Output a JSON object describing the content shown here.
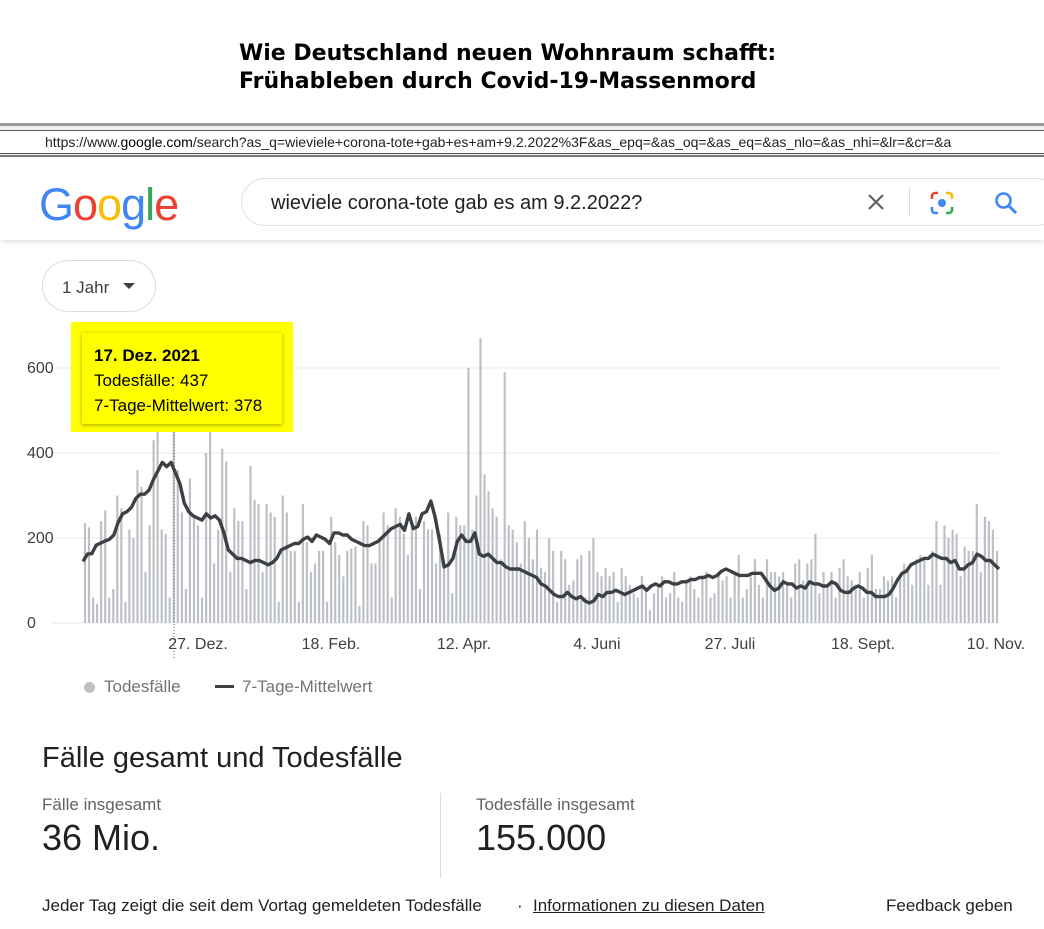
{
  "headline": {
    "line1": "Wie Deutschland neuen Wohnraum schafft:",
    "line2": "Frühableben durch Covid-19-Massenmord"
  },
  "browser": {
    "url_prefix": "https://www.",
    "url_domain": "google.com",
    "url_rest": "/search?as_q=wieviele+corona-tote+gab+es+am+9.2.2022%3F&as_epq=&as_oq=&as_eq=&as_nlo=&as_nhi=&lr=&cr=&a"
  },
  "search": {
    "logo_letters": [
      "G",
      "o",
      "o",
      "g",
      "l",
      "e"
    ],
    "logo_colors": [
      "#4285F4",
      "#EA4335",
      "#FBBC05",
      "#4285F4",
      "#34A853",
      "#EA4335"
    ],
    "query": "wieviele corona-tote gab es am 9.2.2022?",
    "icons": [
      "clear-icon",
      "camera-lens-icon",
      "search-icon"
    ]
  },
  "range_selector": {
    "label": "1 Jahr"
  },
  "tooltip": {
    "date": "17. Dez. 2021",
    "deaths": "Todesfälle: 437",
    "avg": "7-Tage-Mittelwert: 378",
    "highlight_color": "#ffff00"
  },
  "chart_data": {
    "type": "bar+line",
    "y_ticks": [
      "0",
      "200",
      "400",
      "600"
    ],
    "ylim": [
      0,
      680
    ],
    "x_ticks": [
      "27. Dez.",
      "18. Feb.",
      "12. Apr.",
      "4. Juni",
      "27. Juli",
      "18. Sept.",
      "10. Nov."
    ],
    "bar_color": "#bdc1c6",
    "line_color": "#3c4043",
    "series": [
      {
        "name": "Todesfälle",
        "kind": "bar",
        "values": [
          235,
          225,
          60,
          45,
          240,
          265,
          60,
          80,
          300,
          270,
          50,
          220,
          200,
          360,
          320,
          120,
          230,
          430,
          600,
          220,
          210,
          60,
          560,
          360,
          260,
          80,
          340,
          250,
          230,
          60,
          400,
          470,
          140,
          220,
          410,
          380,
          120,
          270,
          240,
          240,
          80,
          370,
          290,
          280,
          120,
          280,
          260,
          250,
          50,
          300,
          260,
          170,
          170,
          50,
          280,
          190,
          120,
          140,
          170,
          170,
          50,
          250,
          190,
          160,
          110,
          170,
          175,
          180,
          40,
          240,
          230,
          140,
          140,
          200,
          260,
          230,
          60,
          270,
          250,
          210,
          160,
          230,
          250,
          80,
          240,
          220,
          220,
          140,
          210,
          150,
          260,
          70,
          250,
          230,
          230,
          600,
          220,
          300,
          670,
          350,
          310,
          270,
          250,
          150,
          590,
          230,
          220,
          190,
          140,
          240,
          200,
          150,
          220,
          130,
          120,
          200,
          170,
          50,
          170,
          150,
          90,
          100,
          150,
          160,
          60,
          170,
          200,
          120,
          110,
          130,
          110,
          120,
          50,
          130,
          110,
          90,
          70,
          60,
          110,
          80,
          30,
          70,
          90,
          110,
          60,
          70,
          120,
          60,
          50,
          100,
          110,
          80,
          60,
          110,
          120,
          60,
          70,
          120,
          100,
          110,
          60,
          120,
          160,
          60,
          80,
          110,
          150,
          90,
          60,
          150,
          120,
          120,
          110,
          120,
          90,
          60,
          140,
          150,
          100,
          140,
          150,
          210,
          70,
          120,
          90,
          120,
          60,
          130,
          150,
          110,
          100,
          90,
          120,
          60,
          130,
          160,
          80,
          80,
          110,
          100,
          110,
          60,
          110,
          140,
          120,
          90,
          150,
          160,
          150,
          90,
          170,
          240,
          90,
          230,
          200,
          220,
          210,
          110,
          180,
          170,
          170,
          280,
          120,
          250,
          240,
          220,
          170
        ]
      },
      {
        "name": "7-Tage-Mittelwert",
        "kind": "line",
        "values": [
          145,
          162,
          163,
          183,
          188,
          193,
          197,
          207,
          237,
          257,
          262,
          272,
          293,
          303,
          303,
          313,
          338,
          358,
          378,
          368,
          378,
          353,
          328,
          282,
          262,
          252,
          247,
          242,
          257,
          247,
          252,
          242,
          212,
          172,
          162,
          152,
          152,
          147,
          142,
          147,
          147,
          142,
          137,
          142,
          152,
          172,
          177,
          182,
          187,
          187,
          197,
          202,
          192,
          207,
          202,
          197,
          187,
          212,
          212,
          207,
          207,
          197,
          192,
          187,
          182,
          182,
          187,
          192,
          202,
          212,
          222,
          227,
          232,
          218,
          257,
          222,
          227,
          257,
          262,
          287,
          247,
          192,
          132,
          137,
          152,
          192,
          207,
          192,
          192,
          212,
          162,
          157,
          162,
          152,
          142,
          142,
          132,
          127,
          127,
          127,
          122,
          117,
          112,
          107,
          92,
          87,
          77,
          67,
          62,
          62,
          72,
          62,
          57,
          62,
          52,
          47,
          52,
          67,
          62,
          72,
          72,
          77,
          72,
          67,
          72,
          77,
          82,
          87,
          77,
          87,
          92,
          87,
          97,
          97,
          92,
          92,
          97,
          97,
          102,
          102,
          107,
          107,
          112,
          107,
          112,
          122,
          127,
          122,
          117,
          112,
          112,
          112,
          117,
          117,
          117,
          102,
          87,
          77,
          82,
          97,
          92,
          92,
          82,
          87,
          82,
          97,
          92,
          92,
          87,
          87,
          97,
          92,
          77,
          72,
          72,
          82,
          87,
          82,
          72,
          72,
          62,
          62,
          62,
          67,
          82,
          102,
          117,
          122,
          137,
          142,
          147,
          152,
          152,
          162,
          157,
          152,
          152,
          142,
          147,
          127,
          127,
          137,
          142,
          162,
          157,
          147,
          147,
          137,
          127
        ]
      }
    ]
  },
  "legend": {
    "bars": "Todesfälle",
    "line": "7-Tage-Mittelwert"
  },
  "totals": {
    "title": "Fälle gesamt und Todesfälle",
    "cases_label": "Fälle insgesamt",
    "cases_value": "36 Mio.",
    "deaths_label": "Todesfälle insgesamt",
    "deaths_value": "155.000"
  },
  "footer": {
    "note": "Jeder Tag zeigt die seit dem Vortag gemeldeten Todesfälle",
    "separator": "·",
    "info_link": "Informationen zu diesen Daten",
    "feedback": "Feedback geben"
  }
}
